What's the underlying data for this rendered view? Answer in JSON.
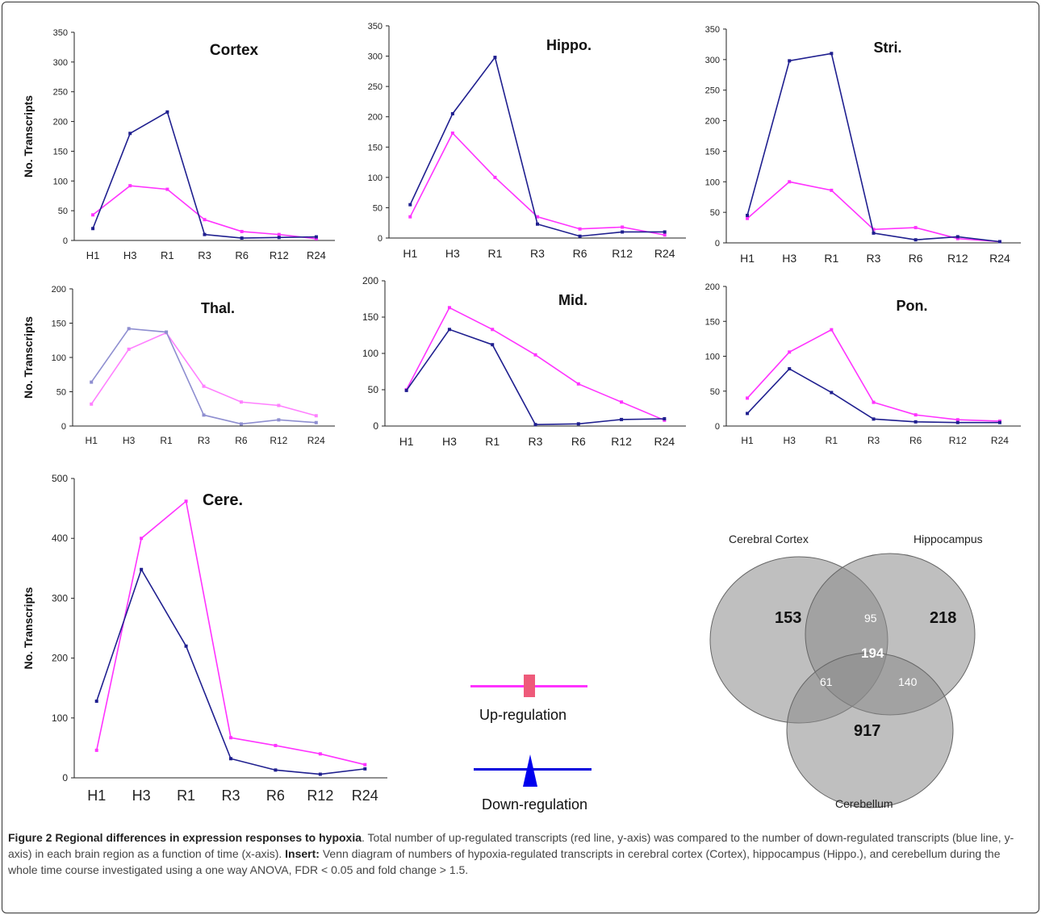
{
  "colors": {
    "up": "#ff33ff",
    "up_marker": "#ee5a7a",
    "down": "#1f1f8f",
    "down_marker": "#0000ee",
    "thal_down": "#8e8ed0",
    "thal_up": "#ff80ff",
    "axis": "#222222",
    "venn": "#8a8a8a"
  },
  "chart_data": [
    {
      "id": "cortex",
      "type": "line",
      "title": "Cortex",
      "ylabel": "No. Transcripts",
      "xlabel": "",
      "categories": [
        "H1",
        "H3",
        "R1",
        "R3",
        "R6",
        "R12",
        "R24"
      ],
      "ylim": [
        0,
        350
      ],
      "yticks": [
        "0",
        "50",
        "100",
        "150",
        "200",
        "250",
        "300",
        "350"
      ],
      "series": [
        {
          "role": "up",
          "values": [
            43,
            92,
            86,
            35,
            15,
            10,
            3
          ]
        },
        {
          "role": "down",
          "values": [
            20,
            180,
            216,
            10,
            4,
            5,
            6
          ]
        }
      ]
    },
    {
      "id": "hippo",
      "type": "line",
      "title": "Hippo.",
      "ylabel": "",
      "xlabel": "",
      "categories": [
        "H1",
        "H3",
        "R1",
        "R3",
        "R6",
        "R12",
        "R24"
      ],
      "ylim": [
        0,
        350
      ],
      "yticks": [
        "0",
        "50",
        "100",
        "150",
        "200",
        "250",
        "300",
        "350"
      ],
      "series": [
        {
          "role": "up",
          "values": [
            35,
            173,
            100,
            35,
            15,
            18,
            5
          ]
        },
        {
          "role": "down",
          "values": [
            55,
            205,
            298,
            23,
            3,
            10,
            10
          ]
        }
      ]
    },
    {
      "id": "stri",
      "type": "line",
      "title": "Stri.",
      "ylabel": "",
      "xlabel": "",
      "categories": [
        "H1",
        "H3",
        "R1",
        "R3",
        "R6",
        "R12",
        "R24"
      ],
      "ylim": [
        0,
        350
      ],
      "yticks": [
        "0",
        "50",
        "100",
        "150",
        "200",
        "250",
        "300",
        "350"
      ],
      "series": [
        {
          "role": "up",
          "values": [
            40,
            100,
            86,
            22,
            25,
            7,
            2
          ]
        },
        {
          "role": "down",
          "values": [
            45,
            298,
            310,
            16,
            5,
            10,
            2
          ]
        }
      ]
    },
    {
      "id": "thal",
      "type": "line",
      "title": "Thal.",
      "ylabel": "No. Transcripts",
      "xlabel": "",
      "categories": [
        "H1",
        "H3",
        "R1",
        "R3",
        "R6",
        "R12",
        "R24"
      ],
      "ylim": [
        0,
        200
      ],
      "yticks": [
        "0",
        "50",
        "100",
        "150",
        "200"
      ],
      "series": [
        {
          "role": "up",
          "values": [
            32,
            112,
            136,
            58,
            35,
            30,
            15
          ]
        },
        {
          "role": "down",
          "values": [
            64,
            142,
            137,
            16,
            3,
            9,
            5
          ]
        }
      ]
    },
    {
      "id": "mid",
      "type": "line",
      "title": "Mid.",
      "ylabel": "",
      "xlabel": "",
      "categories": [
        "H1",
        "H3",
        "R1",
        "R3",
        "R6",
        "R12",
        "R24"
      ],
      "ylim": [
        0,
        200
      ],
      "yticks": [
        "0",
        "50",
        "100",
        "150",
        "200"
      ],
      "series": [
        {
          "role": "up",
          "values": [
            50,
            163,
            133,
            98,
            58,
            33,
            8
          ]
        },
        {
          "role": "down",
          "values": [
            49,
            133,
            112,
            2,
            3,
            9,
            10
          ]
        }
      ]
    },
    {
      "id": "pon",
      "type": "line",
      "title": "Pon.",
      "ylabel": "",
      "xlabel": "",
      "categories": [
        "H1",
        "H3",
        "R1",
        "R3",
        "R6",
        "R12",
        "R24"
      ],
      "ylim": [
        0,
        200
      ],
      "yticks": [
        "0",
        "50",
        "100",
        "150",
        "200"
      ],
      "series": [
        {
          "role": "up",
          "values": [
            40,
            106,
            138,
            34,
            16,
            9,
            7
          ]
        },
        {
          "role": "down",
          "values": [
            18,
            82,
            48,
            10,
            6,
            5,
            5
          ]
        }
      ]
    },
    {
      "id": "cere",
      "type": "line",
      "title": "Cere.",
      "ylabel": "No. Transcripts",
      "xlabel": "",
      "categories": [
        "H1",
        "H3",
        "R1",
        "R3",
        "R6",
        "R12",
        "R24"
      ],
      "ylim": [
        0,
        500
      ],
      "yticks": [
        "0",
        "100",
        "200",
        "300",
        "400",
        "500"
      ],
      "series": [
        {
          "role": "up",
          "values": [
            46,
            400,
            462,
            67,
            54,
            40,
            22
          ]
        },
        {
          "role": "down",
          "values": [
            128,
            348,
            220,
            32,
            13,
            6,
            15
          ]
        }
      ]
    }
  ],
  "legend": {
    "up_label": "Up-regulation",
    "down_label": "Down-regulation"
  },
  "venn": {
    "labels": {
      "cortex": "Cerebral Cortex",
      "hippo": "Hippocampus",
      "cere": "Cerebellum"
    },
    "values": {
      "cortex_only": "153",
      "hippo_only": "218",
      "cere_only": "917",
      "cortex_hippo": "95",
      "cortex_cere": "61",
      "hippo_cere": "140",
      "all": "194"
    }
  },
  "caption": {
    "title": "Figure 2 Regional differences in expression responses to hypoxia",
    "text1": ". Total number of up-regulated transcripts (red line, y-axis) was compared to the number of down-regulated transcripts (blue line, y-axis) in each brain region as a function of time (x-axis). ",
    "insert_label": "Insert:",
    "text2": " Venn diagram of numbers of hypoxia-regulated transcripts in cerebral cortex (Cortex), hippocampus (Hippo.), and cerebellum during the whole time course investigated using a one way ANOVA, FDR < 0.05 and fold change > 1.5."
  }
}
